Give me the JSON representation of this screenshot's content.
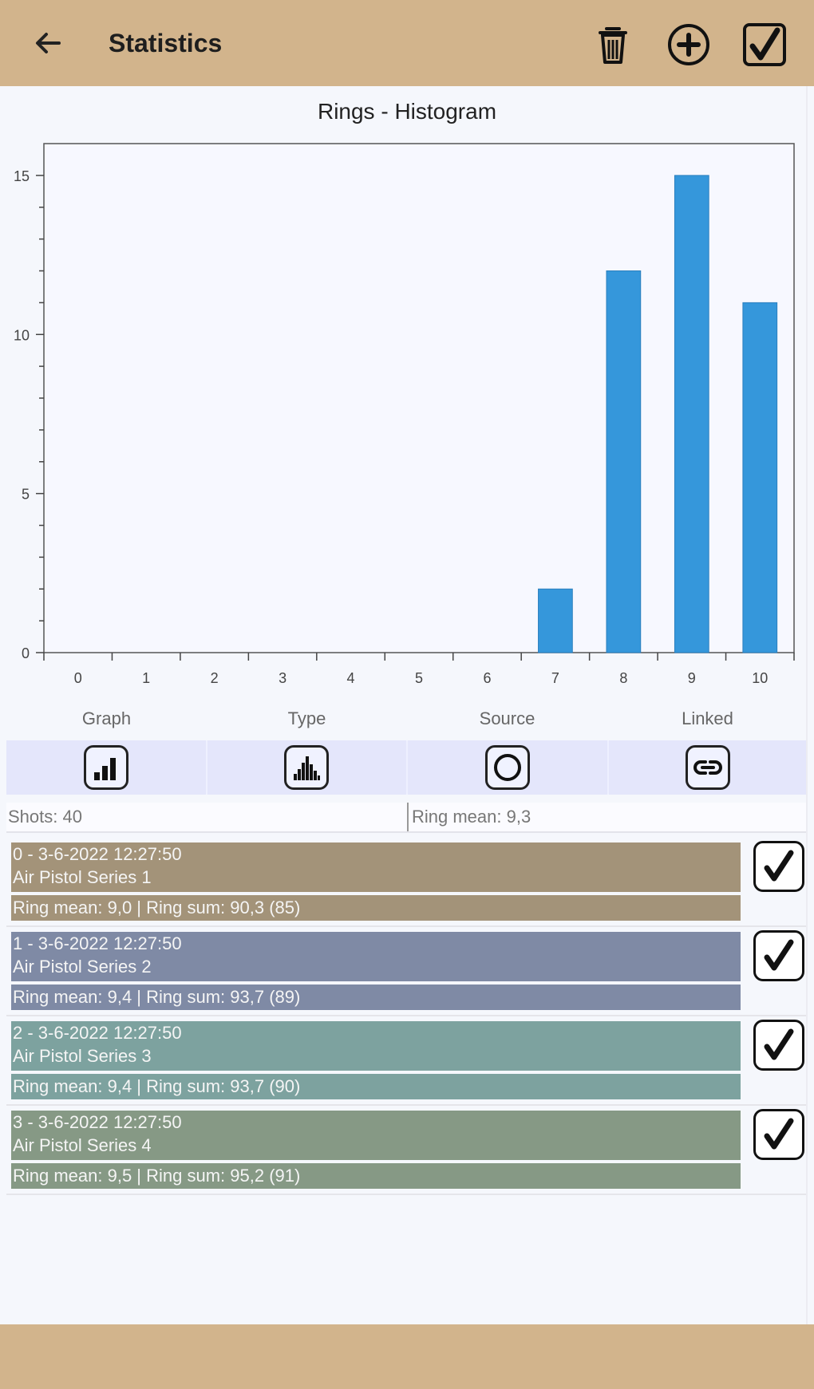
{
  "appbar": {
    "title": "Statistics",
    "back_icon": "arrow-left-icon",
    "actions": [
      "trash-icon",
      "plus-circle-icon",
      "checkbox-checked-icon"
    ]
  },
  "chart_title": "Rings - Histogram",
  "chart_data": {
    "type": "bar",
    "title": "Rings - Histogram",
    "categories": [
      "0",
      "1",
      "2",
      "3",
      "4",
      "5",
      "6",
      "7",
      "8",
      "9",
      "10"
    ],
    "values": [
      0,
      0,
      0,
      0,
      0,
      0,
      0,
      2,
      12,
      15,
      11
    ],
    "ylim": [
      0,
      16
    ],
    "yticks": [
      0,
      5,
      10,
      15
    ],
    "grid": false,
    "bar_color": "#3597db"
  },
  "controls": {
    "labels": [
      "Graph",
      "Type",
      "Source",
      "Linked"
    ],
    "icons": [
      "bar-chart-icon",
      "histogram-icon",
      "circle-icon",
      "link-icon"
    ]
  },
  "stats": {
    "shots": "Shots: 40",
    "ring_mean": "Ring mean: 9,3"
  },
  "series": [
    {
      "header": "0 - 3-6-2022 12:27:50",
      "name": "Air Pistol Series 1",
      "summary": "Ring mean:  9,0 | Ring sum:  90,3 (85)",
      "color": "#a39379",
      "checked": true
    },
    {
      "header": "1 - 3-6-2022 12:27:50",
      "name": "Air Pistol Series 2",
      "summary": "Ring mean:  9,4 | Ring sum:  93,7 (89)",
      "color": "#7f8aa5",
      "checked": true
    },
    {
      "header": "2 - 3-6-2022 12:27:50",
      "name": "Air Pistol Series 3",
      "summary": "Ring mean:  9,4 | Ring sum:  93,7 (90)",
      "color": "#7da29f",
      "checked": true
    },
    {
      "header": "3 - 3-6-2022 12:27:50",
      "name": "Air Pistol Series 4",
      "summary": "Ring mean:  9,5 | Ring sum:  95,2 (91)",
      "color": "#869985",
      "checked": true
    }
  ]
}
